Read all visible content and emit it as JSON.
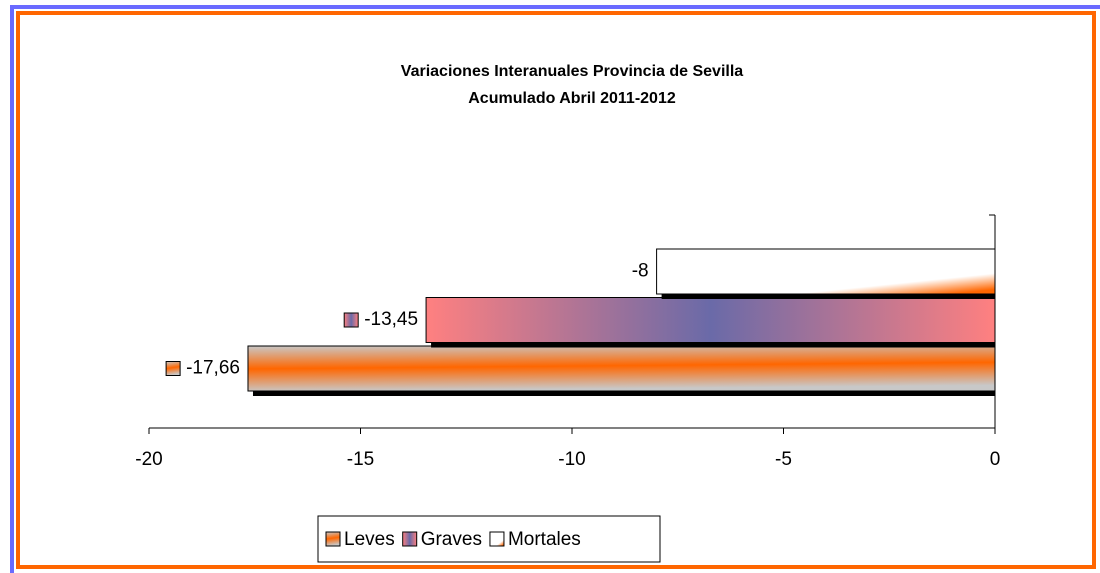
{
  "chart_data": {
    "type": "bar",
    "orientation": "horizontal",
    "title": "Variaciones Interanuales Provincia de Sevilla",
    "subtitle": "Acumulado Abril  2011-2012",
    "categories": [
      null
    ],
    "series": [
      {
        "name": "Leves",
        "color": "#ff6600",
        "values": [
          -17.66
        ],
        "value_labels": [
          "-17,66"
        ]
      },
      {
        "name": "Graves",
        "color": "#ff8080",
        "values": [
          -13.45
        ],
        "value_labels": [
          "-13,45"
        ]
      },
      {
        "name": "Mortales",
        "color": "#ffffff",
        "values": [
          -8
        ],
        "value_labels": [
          "-8"
        ]
      }
    ],
    "xlim": [
      -20,
      0
    ],
    "xticks": [
      -20,
      -15,
      -10,
      -5,
      0
    ],
    "legend": "bottom"
  }
}
